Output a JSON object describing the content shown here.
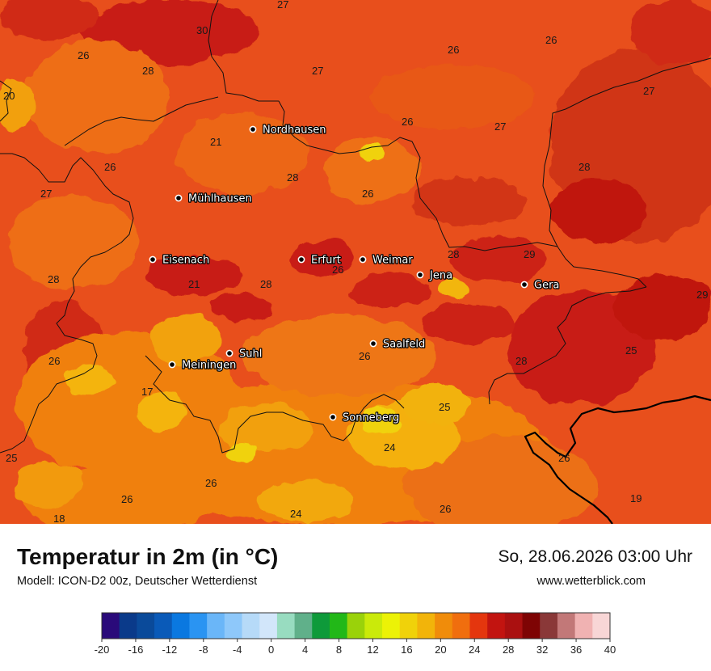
{
  "title": "Temperatur in 2m (in °C)",
  "model": "Modell: ICON-D2 00z, Deutscher Wetterdienst",
  "datetime": "So, 28.06.2026 03:00 Uhr",
  "website": "www.wetterblick.com",
  "cities": [
    {
      "name": "Nordhausen"
    },
    {
      "name": "Mühlhausen"
    },
    {
      "name": "Eisenach"
    },
    {
      "name": "Erfurt"
    },
    {
      "name": "Weimar"
    },
    {
      "name": "Jena"
    },
    {
      "name": "Gera"
    },
    {
      "name": "Suhl"
    },
    {
      "name": "Meiningen"
    },
    {
      "name": "Saalfeld"
    },
    {
      "name": "Sonneberg"
    }
  ],
  "value_labels": [
    "27",
    "30",
    "26",
    "28",
    "27",
    "26",
    "20",
    "26",
    "27",
    "21",
    "26",
    "27",
    "26",
    "28",
    "27",
    "26",
    "28",
    "28",
    "29",
    "21",
    "28",
    "26",
    "28",
    "29",
    "26",
    "26",
    "28",
    "25",
    "17",
    "25",
    "25",
    "24",
    "26",
    "26",
    "26",
    "26",
    "19",
    "18",
    "24"
  ],
  "legend": {
    "colors": [
      "#2a0a7a",
      "#0a3a8a",
      "#0a4a9a",
      "#0a5ab8",
      "#0a78e0",
      "#2a94f2",
      "#6ab6f8",
      "#8ec8fa",
      "#b6daf8",
      "#d2e6fa",
      "#98dcc0",
      "#60b08a",
      "#0e9a3a",
      "#22b818",
      "#9ad20a",
      "#caea0a",
      "#ecf206",
      "#f0d20a",
      "#f2b40a",
      "#f08c0a",
      "#f06e0e",
      "#e4360e",
      "#c21410",
      "#aa1010",
      "#7e0404",
      "#8a3838",
      "#c27878",
      "#f0b2b2",
      "#f8d6d6"
    ],
    "ticks": [
      "-20",
      "-16",
      "-12",
      "-8",
      "-4",
      "0",
      "4",
      "8",
      "12",
      "16",
      "20",
      "24",
      "28",
      "32",
      "36",
      "40"
    ]
  }
}
